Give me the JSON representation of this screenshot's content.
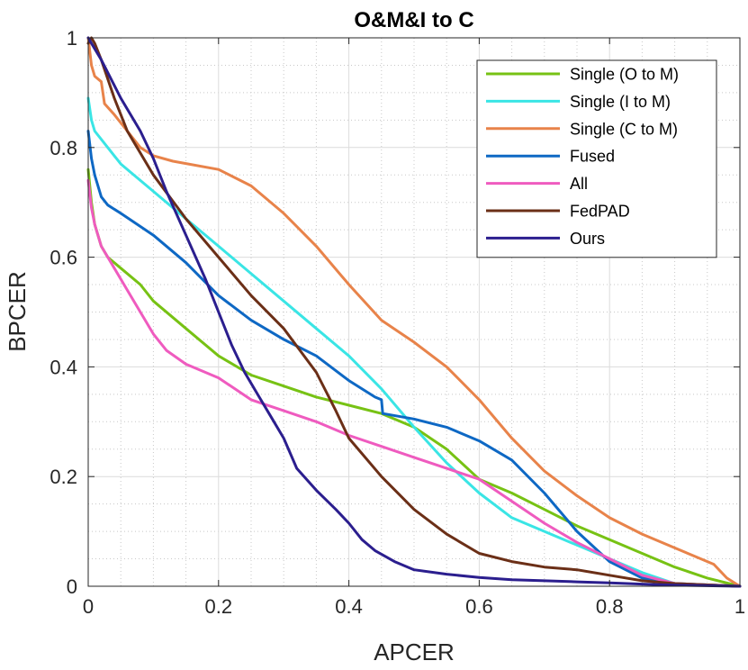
{
  "chart_data": {
    "type": "line",
    "title": "O&M&I to C",
    "xlabel": "APCER",
    "ylabel": "BPCER",
    "xlim": [
      0,
      1
    ],
    "ylim": [
      0,
      1
    ],
    "x_ticks": [
      0,
      0.2,
      0.4,
      0.6,
      0.8,
      1
    ],
    "y_ticks": [
      0,
      0.2,
      0.4,
      0.6,
      0.8,
      1
    ],
    "x_tick_labels": [
      "0",
      "0.2",
      "0.4",
      "0.6",
      "0.8",
      "1"
    ],
    "y_tick_labels": [
      "0",
      "0.2",
      "0.4",
      "0.6",
      "0.8",
      "1"
    ],
    "grid": true,
    "minor_grid": true,
    "legend_position": "top-right",
    "series": [
      {
        "name": "Single (O to M)",
        "color": "#77c214",
        "points": [
          [
            0,
            0.76
          ],
          [
            0.005,
            0.7
          ],
          [
            0.01,
            0.66
          ],
          [
            0.02,
            0.62
          ],
          [
            0.03,
            0.6
          ],
          [
            0.05,
            0.58
          ],
          [
            0.08,
            0.55
          ],
          [
            0.1,
            0.52
          ],
          [
            0.15,
            0.47
          ],
          [
            0.2,
            0.42
          ],
          [
            0.25,
            0.385
          ],
          [
            0.3,
            0.365
          ],
          [
            0.35,
            0.345
          ],
          [
            0.4,
            0.33
          ],
          [
            0.45,
            0.315
          ],
          [
            0.5,
            0.29
          ],
          [
            0.55,
            0.25
          ],
          [
            0.6,
            0.195
          ],
          [
            0.65,
            0.17
          ],
          [
            0.7,
            0.14
          ],
          [
            0.75,
            0.11
          ],
          [
            0.8,
            0.085
          ],
          [
            0.85,
            0.06
          ],
          [
            0.9,
            0.035
          ],
          [
            0.95,
            0.015
          ],
          [
            1.0,
            0.0
          ]
        ]
      },
      {
        "name": "Single (I to M)",
        "color": "#3ae5e5",
        "points": [
          [
            0,
            0.89
          ],
          [
            0.005,
            0.85
          ],
          [
            0.01,
            0.83
          ],
          [
            0.03,
            0.8
          ],
          [
            0.05,
            0.77
          ],
          [
            0.1,
            0.72
          ],
          [
            0.15,
            0.67
          ],
          [
            0.2,
            0.62
          ],
          [
            0.25,
            0.57
          ],
          [
            0.3,
            0.52
          ],
          [
            0.35,
            0.47
          ],
          [
            0.4,
            0.42
          ],
          [
            0.45,
            0.36
          ],
          [
            0.5,
            0.29
          ],
          [
            0.55,
            0.225
          ],
          [
            0.6,
            0.17
          ],
          [
            0.65,
            0.125
          ],
          [
            0.7,
            0.1
          ],
          [
            0.75,
            0.075
          ],
          [
            0.8,
            0.05
          ],
          [
            0.85,
            0.025
          ],
          [
            0.9,
            0.005
          ],
          [
            1.0,
            0.0
          ]
        ]
      },
      {
        "name": "Single (C to M)",
        "color": "#e8834a",
        "points": [
          [
            0,
            1.0
          ],
          [
            0.005,
            0.95
          ],
          [
            0.01,
            0.93
          ],
          [
            0.02,
            0.92
          ],
          [
            0.025,
            0.88
          ],
          [
            0.04,
            0.86
          ],
          [
            0.06,
            0.83
          ],
          [
            0.08,
            0.8
          ],
          [
            0.1,
            0.785
          ],
          [
            0.13,
            0.775
          ],
          [
            0.2,
            0.76
          ],
          [
            0.25,
            0.73
          ],
          [
            0.3,
            0.68
          ],
          [
            0.35,
            0.62
          ],
          [
            0.4,
            0.55
          ],
          [
            0.45,
            0.485
          ],
          [
            0.5,
            0.445
          ],
          [
            0.55,
            0.4
          ],
          [
            0.6,
            0.34
          ],
          [
            0.65,
            0.27
          ],
          [
            0.7,
            0.21
          ],
          [
            0.75,
            0.165
          ],
          [
            0.8,
            0.125
          ],
          [
            0.85,
            0.095
          ],
          [
            0.9,
            0.07
          ],
          [
            0.93,
            0.055
          ],
          [
            0.96,
            0.04
          ],
          [
            0.98,
            0.015
          ],
          [
            1.0,
            0.0
          ]
        ]
      },
      {
        "name": "Fused",
        "color": "#0e68c4",
        "points": [
          [
            0,
            0.83
          ],
          [
            0.005,
            0.78
          ],
          [
            0.01,
            0.75
          ],
          [
            0.02,
            0.71
          ],
          [
            0.03,
            0.695
          ],
          [
            0.05,
            0.68
          ],
          [
            0.1,
            0.64
          ],
          [
            0.15,
            0.59
          ],
          [
            0.2,
            0.53
          ],
          [
            0.25,
            0.485
          ],
          [
            0.3,
            0.45
          ],
          [
            0.35,
            0.42
          ],
          [
            0.4,
            0.375
          ],
          [
            0.44,
            0.345
          ],
          [
            0.45,
            0.34
          ],
          [
            0.452,
            0.315
          ],
          [
            0.5,
            0.305
          ],
          [
            0.55,
            0.29
          ],
          [
            0.6,
            0.265
          ],
          [
            0.65,
            0.23
          ],
          [
            0.7,
            0.17
          ],
          [
            0.75,
            0.1
          ],
          [
            0.8,
            0.045
          ],
          [
            0.85,
            0.015
          ],
          [
            0.9,
            0.005
          ],
          [
            1.0,
            0.0
          ]
        ]
      },
      {
        "name": "All",
        "color": "#ef5bbf",
        "points": [
          [
            0,
            0.74
          ],
          [
            0.005,
            0.69
          ],
          [
            0.01,
            0.66
          ],
          [
            0.02,
            0.62
          ],
          [
            0.04,
            0.58
          ],
          [
            0.06,
            0.54
          ],
          [
            0.08,
            0.5
          ],
          [
            0.1,
            0.46
          ],
          [
            0.12,
            0.43
          ],
          [
            0.15,
            0.405
          ],
          [
            0.2,
            0.38
          ],
          [
            0.25,
            0.34
          ],
          [
            0.3,
            0.32
          ],
          [
            0.35,
            0.3
          ],
          [
            0.4,
            0.275
          ],
          [
            0.45,
            0.255
          ],
          [
            0.5,
            0.235
          ],
          [
            0.55,
            0.215
          ],
          [
            0.6,
            0.195
          ],
          [
            0.65,
            0.155
          ],
          [
            0.7,
            0.115
          ],
          [
            0.75,
            0.08
          ],
          [
            0.8,
            0.05
          ],
          [
            0.85,
            0.02
          ],
          [
            0.9,
            0.005
          ],
          [
            1.0,
            0.0
          ]
        ]
      },
      {
        "name": "FedPAD",
        "color": "#6b2f17",
        "points": [
          [
            0,
            0.99
          ],
          [
            0.005,
            1.0
          ],
          [
            0.01,
            0.99
          ],
          [
            0.02,
            0.96
          ],
          [
            0.04,
            0.89
          ],
          [
            0.06,
            0.83
          ],
          [
            0.08,
            0.79
          ],
          [
            0.1,
            0.75
          ],
          [
            0.15,
            0.67
          ],
          [
            0.2,
            0.6
          ],
          [
            0.25,
            0.53
          ],
          [
            0.3,
            0.47
          ],
          [
            0.35,
            0.39
          ],
          [
            0.38,
            0.32
          ],
          [
            0.4,
            0.27
          ],
          [
            0.45,
            0.2
          ],
          [
            0.5,
            0.14
          ],
          [
            0.55,
            0.095
          ],
          [
            0.6,
            0.06
          ],
          [
            0.65,
            0.045
          ],
          [
            0.7,
            0.035
          ],
          [
            0.75,
            0.03
          ],
          [
            0.8,
            0.02
          ],
          [
            0.85,
            0.01
          ],
          [
            0.9,
            0.005
          ],
          [
            1.0,
            0.0
          ]
        ]
      },
      {
        "name": "Ours",
        "color": "#2b1e8e",
        "points": [
          [
            0,
            1.0
          ],
          [
            0.005,
            0.99
          ],
          [
            0.02,
            0.96
          ],
          [
            0.05,
            0.89
          ],
          [
            0.08,
            0.83
          ],
          [
            0.1,
            0.78
          ],
          [
            0.12,
            0.72
          ],
          [
            0.15,
            0.64
          ],
          [
            0.18,
            0.56
          ],
          [
            0.2,
            0.5
          ],
          [
            0.22,
            0.44
          ],
          [
            0.24,
            0.39
          ],
          [
            0.26,
            0.35
          ],
          [
            0.28,
            0.31
          ],
          [
            0.3,
            0.27
          ],
          [
            0.32,
            0.215
          ],
          [
            0.35,
            0.175
          ],
          [
            0.38,
            0.14
          ],
          [
            0.4,
            0.115
          ],
          [
            0.42,
            0.085
          ],
          [
            0.44,
            0.065
          ],
          [
            0.47,
            0.045
          ],
          [
            0.5,
            0.03
          ],
          [
            0.55,
            0.022
          ],
          [
            0.6,
            0.016
          ],
          [
            0.65,
            0.012
          ],
          [
            0.7,
            0.01
          ],
          [
            0.75,
            0.008
          ],
          [
            0.8,
            0.006
          ],
          [
            0.85,
            0.004
          ],
          [
            0.9,
            0.002
          ],
          [
            1.0,
            0.0
          ]
        ]
      }
    ]
  }
}
